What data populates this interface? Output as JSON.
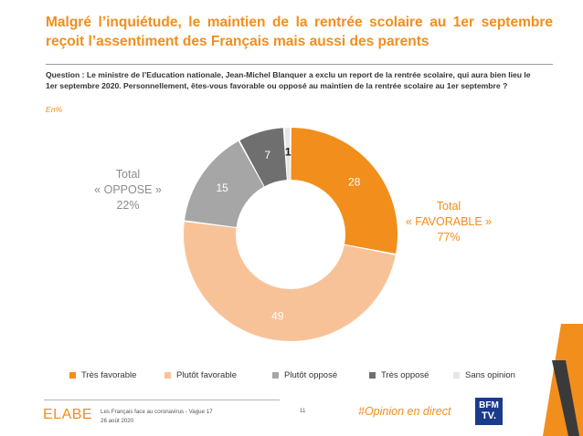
{
  "title": "Malgré l’inquiétude, le maintien de la rentrée scolaire au 1er septembre reçoit l’assentiment des Français mais aussi des parents",
  "question": "Question : Le ministre de l’Education nationale, Jean-Michel Blanquer a exclu un report de la rentrée scolaire, qui aura bien lieu le 1er septembre 2020. Personnellement, êtes-vous favorable ou opposé au maintien de la rentrée scolaire au 1er septembre ?",
  "unit": "En%",
  "totals": {
    "oppose": {
      "line1": "Total",
      "line2": "« OPPOSE »",
      "line3": "22%"
    },
    "favorable": {
      "line1": "Total",
      "line2": "« FAVORABLE »",
      "line3": "77%"
    }
  },
  "chart_data": {
    "type": "pie",
    "variant": "donut",
    "unit": "En%",
    "categories": [
      "Très favorable",
      "Plutôt favorable",
      "Plutôt opposé",
      "Très opposé",
      "Sans opinion"
    ],
    "values": [
      28,
      49,
      15,
      7,
      1
    ],
    "colors": [
      "#f28e1c",
      "#f8c298",
      "#a6a6a6",
      "#6f6f6f",
      "#e6e6e6"
    ],
    "label_colors": [
      "#ffffff",
      "#ffffff",
      "#ffffff",
      "#ffffff",
      "#1a1a1a"
    ],
    "legend_position": "bottom"
  },
  "footer": {
    "brand": "ELABE",
    "source_line1": "Les Français face au coronavirus - Vague 17",
    "source_line2": "26 août 2020",
    "page_number": "11",
    "hashtag": "#Opinion en direct",
    "partner_logo_top": "BFM",
    "partner_logo_bottom": "TV."
  },
  "colors": {
    "accent": "#f28e1c",
    "oppose_gray": "#8c8c8c",
    "partner_blue": "#1a3b8c"
  }
}
